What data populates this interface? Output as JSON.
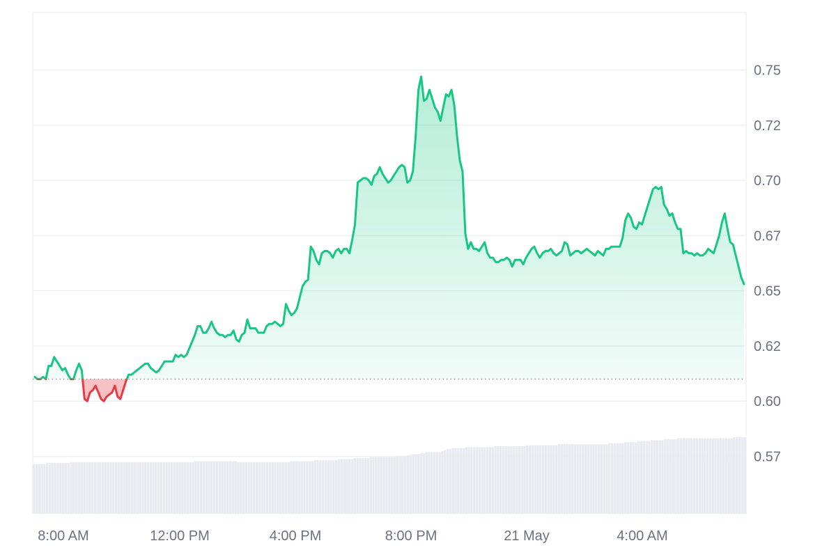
{
  "chart_data": {
    "type": "area",
    "title": "",
    "xlabel": "",
    "ylabel": "",
    "x_tick_labels": [
      "8:00 AM",
      "12:00 PM",
      "4:00 PM",
      "8:00 PM",
      "21 May",
      "4:00 AM"
    ],
    "y_tick_labels": [
      "0.57",
      "0.60",
      "0.62",
      "0.65",
      "0.67",
      "0.70",
      "0.72",
      "0.75"
    ],
    "y_tick_values": [
      0.575,
      0.6,
      0.625,
      0.65,
      0.675,
      0.7,
      0.725,
      0.75
    ],
    "ylim": [
      0.549,
      0.776
    ],
    "reference_value": 0.61,
    "grid": true,
    "colors": {
      "up_line": "#16c784",
      "down_line": "#ea3943",
      "up_fill": "#16c784",
      "down_fill": "#ea3943",
      "grid": "#eef0f3",
      "reference": "#8a8f98",
      "volume": "#e8ecf1"
    },
    "series": [
      {
        "values": [
          0.611,
          0.61,
          0.61,
          0.611,
          0.61,
          0.616,
          0.616,
          0.62,
          0.618,
          0.616,
          0.614,
          0.615,
          0.612,
          0.61,
          0.61,
          0.614,
          0.617,
          0.614,
          0.601,
          0.6,
          0.604,
          0.605,
          0.607,
          0.604,
          0.601,
          0.6,
          0.602,
          0.603,
          0.604,
          0.607,
          0.602,
          0.601,
          0.605,
          0.609,
          0.612,
          0.612,
          0.613,
          0.614,
          0.615,
          0.616,
          0.617,
          0.617,
          0.615,
          0.614,
          0.613,
          0.614,
          0.616,
          0.618,
          0.618,
          0.618,
          0.618,
          0.621,
          0.62,
          0.621,
          0.62,
          0.621,
          0.624,
          0.627,
          0.63,
          0.634,
          0.634,
          0.631,
          0.631,
          0.633,
          0.636,
          0.633,
          0.631,
          0.63,
          0.63,
          0.629,
          0.63,
          0.63,
          0.632,
          0.628,
          0.627,
          0.63,
          0.631,
          0.637,
          0.633,
          0.633,
          0.633,
          0.631,
          0.631,
          0.631,
          0.634,
          0.635,
          0.635,
          0.636,
          0.635,
          0.634,
          0.635,
          0.644,
          0.641,
          0.639,
          0.64,
          0.642,
          0.647,
          0.652,
          0.654,
          0.655,
          0.67,
          0.668,
          0.664,
          0.662,
          0.667,
          0.668,
          0.668,
          0.667,
          0.665,
          0.668,
          0.669,
          0.667,
          0.669,
          0.669,
          0.667,
          0.673,
          0.68,
          0.699,
          0.7,
          0.701,
          0.701,
          0.7,
          0.698,
          0.702,
          0.703,
          0.706,
          0.703,
          0.701,
          0.699,
          0.7,
          0.702,
          0.704,
          0.706,
          0.707,
          0.706,
          0.699,
          0.7,
          0.704,
          0.72,
          0.741,
          0.747,
          0.736,
          0.737,
          0.741,
          0.737,
          0.733,
          0.731,
          0.727,
          0.733,
          0.739,
          0.738,
          0.741,
          0.734,
          0.72,
          0.709,
          0.704,
          0.676,
          0.669,
          0.672,
          0.669,
          0.669,
          0.668,
          0.67,
          0.672,
          0.667,
          0.665,
          0.665,
          0.663,
          0.663,
          0.664,
          0.664,
          0.665,
          0.664,
          0.661,
          0.664,
          0.664,
          0.664,
          0.662,
          0.665,
          0.667,
          0.669,
          0.67,
          0.667,
          0.665,
          0.667,
          0.668,
          0.668,
          0.669,
          0.667,
          0.666,
          0.667,
          0.668,
          0.672,
          0.671,
          0.666,
          0.667,
          0.668,
          0.668,
          0.667,
          0.668,
          0.669,
          0.668,
          0.667,
          0.666,
          0.668,
          0.667,
          0.666,
          0.669,
          0.669,
          0.67,
          0.67,
          0.67,
          0.67,
          0.674,
          0.682,
          0.685,
          0.683,
          0.679,
          0.678,
          0.681,
          0.68,
          0.684,
          0.688,
          0.692,
          0.696,
          0.697,
          0.696,
          0.697,
          0.689,
          0.687,
          0.684,
          0.685,
          0.681,
          0.678,
          0.678,
          0.667,
          0.668,
          0.667,
          0.667,
          0.666,
          0.667,
          0.666,
          0.666,
          0.667,
          0.669,
          0.668,
          0.667,
          0.671,
          0.675,
          0.681,
          0.685,
          0.678,
          0.672,
          0.671,
          0.666,
          0.661,
          0.656,
          0.653
        ]
      }
    ],
    "volume_values": [
      0.5,
      0.5,
      0.5,
      0.5,
      0.5,
      0.51,
      0.51,
      0.51,
      0.51,
      0.51,
      0.51,
      0.51,
      0.51,
      0.51,
      0.52,
      0.52,
      0.52,
      0.52,
      0.52,
      0.52,
      0.52,
      0.52,
      0.52,
      0.52,
      0.52,
      0.52,
      0.52,
      0.52,
      0.52,
      0.52,
      0.52,
      0.52,
      0.52,
      0.52,
      0.52,
      0.52,
      0.52,
      0.52,
      0.52,
      0.52,
      0.52,
      0.52,
      0.52,
      0.52,
      0.52,
      0.52,
      0.52,
      0.52,
      0.52,
      0.52,
      0.52,
      0.52,
      0.52,
      0.52,
      0.52,
      0.52,
      0.52,
      0.52,
      0.52,
      0.52,
      0.52,
      0.53,
      0.53,
      0.53,
      0.53,
      0.53,
      0.53,
      0.53,
      0.53,
      0.53,
      0.53,
      0.53,
      0.53,
      0.53,
      0.53,
      0.53,
      0.53,
      0.52,
      0.52,
      0.52,
      0.52,
      0.52,
      0.52,
      0.52,
      0.52,
      0.52,
      0.52,
      0.52,
      0.52,
      0.52,
      0.52,
      0.52,
      0.52,
      0.52,
      0.52,
      0.52,
      0.52,
      0.53,
      0.53,
      0.53,
      0.53,
      0.53,
      0.53,
      0.53,
      0.53,
      0.53,
      0.54,
      0.54,
      0.54,
      0.54,
      0.54,
      0.54,
      0.54,
      0.54,
      0.54,
      0.55,
      0.55,
      0.55,
      0.55,
      0.55,
      0.55,
      0.56,
      0.56,
      0.56,
      0.56,
      0.56,
      0.56,
      0.57,
      0.57,
      0.57,
      0.57,
      0.57,
      0.57,
      0.57,
      0.57,
      0.57,
      0.57,
      0.58,
      0.58,
      0.58,
      0.58,
      0.59,
      0.59,
      0.6,
      0.6,
      0.6,
      0.61,
      0.61,
      0.62,
      0.62,
      0.62,
      0.62,
      0.62,
      0.62,
      0.63,
      0.64,
      0.65,
      0.65,
      0.66,
      0.66,
      0.66,
      0.66,
      0.66,
      0.67,
      0.67,
      0.67,
      0.67,
      0.67,
      0.67,
      0.67,
      0.67,
      0.67,
      0.67,
      0.67,
      0.68,
      0.68,
      0.68,
      0.68,
      0.68,
      0.68,
      0.68,
      0.68,
      0.68,
      0.68,
      0.68,
      0.68,
      0.69,
      0.69,
      0.69,
      0.69,
      0.69,
      0.69,
      0.69,
      0.69,
      0.69,
      0.69,
      0.69,
      0.69,
      0.7,
      0.7,
      0.7,
      0.7,
      0.7,
      0.7,
      0.7,
      0.7,
      0.7,
      0.7,
      0.7,
      0.7,
      0.7,
      0.7,
      0.7,
      0.7,
      0.7,
      0.7,
      0.7,
      0.71,
      0.71,
      0.71,
      0.71,
      0.71,
      0.71,
      0.72,
      0.72,
      0.72,
      0.72,
      0.72,
      0.73,
      0.73,
      0.73,
      0.73,
      0.73,
      0.74,
      0.74,
      0.74,
      0.74,
      0.74,
      0.75,
      0.75,
      0.75,
      0.75,
      0.75,
      0.76,
      0.76,
      0.76,
      0.76,
      0.76,
      0.76,
      0.76,
      0.76,
      0.76,
      0.76,
      0.76,
      0.76,
      0.76,
      0.76,
      0.76,
      0.76,
      0.76,
      0.76,
      0.76,
      0.76,
      0.76,
      0.77,
      0.77,
      0.77,
      0.77,
      0.77
    ]
  }
}
